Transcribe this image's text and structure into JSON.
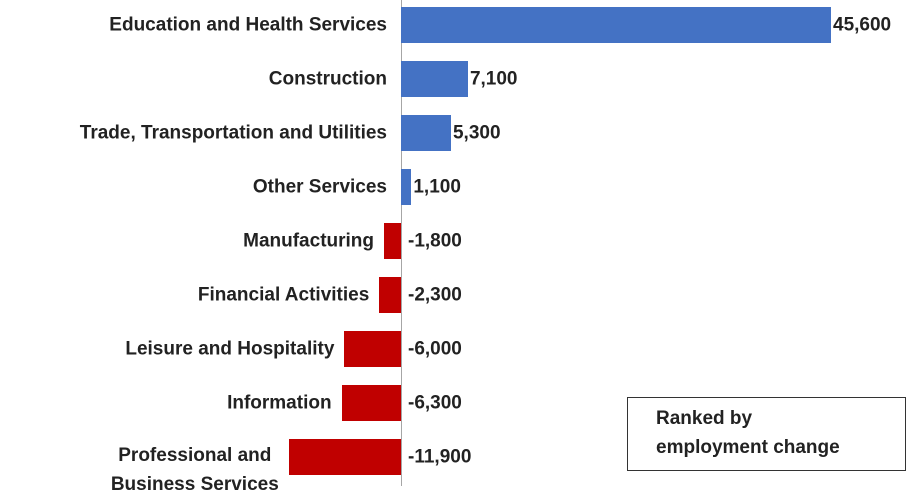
{
  "chart_data": {
    "type": "bar",
    "orientation": "horizontal",
    "categories": [
      "Education and Health Services",
      "Construction",
      "Trade, Transportation and Utilities",
      "Other Services",
      "Manufacturing",
      "Financial Activities",
      "Leisure and Hospitality",
      "Information",
      "Professional and\nBusiness Services"
    ],
    "values": [
      45600,
      7100,
      5300,
      1100,
      -1800,
      -2300,
      -6000,
      -6300,
      -11900
    ],
    "value_labels": [
      "45,600",
      "7,100",
      "5,300",
      "1,100",
      "-1,800",
      "-2,300",
      "-6,000",
      "-6,300",
      "-11,900"
    ],
    "positive_color": "#4472c4",
    "negative_color": "#c00000",
    "annotation": "Ranked by\nemployment change"
  }
}
